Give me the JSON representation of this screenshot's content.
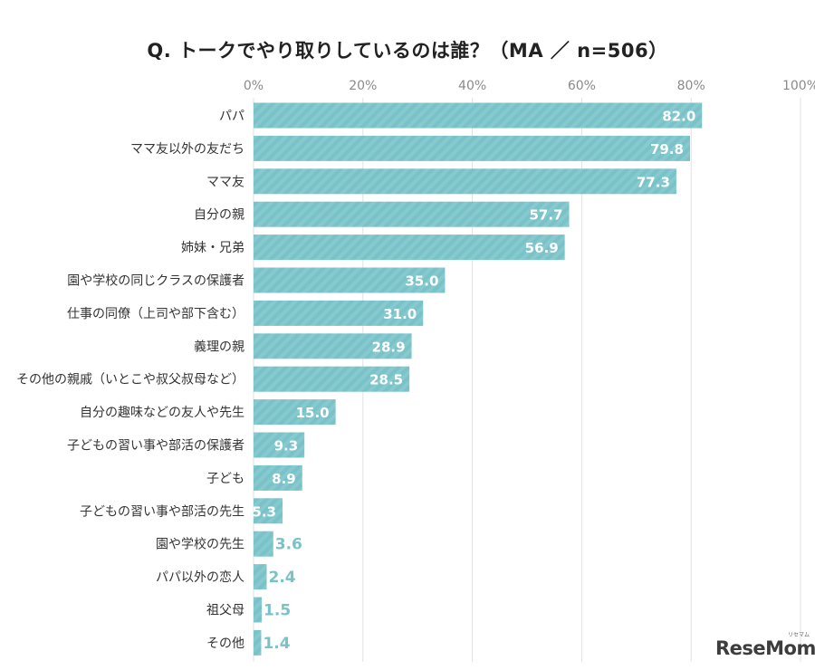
{
  "chart_data": {
    "type": "bar",
    "orientation": "horizontal",
    "title": "Q. トークでやり取りしているのは誰？（MA ／ n=506）",
    "xlabel": "",
    "ylabel": "",
    "xlim": [
      0,
      100
    ],
    "x_ticks": [
      "0%",
      "20%",
      "40%",
      "60%",
      "80%",
      "100%"
    ],
    "grid": true,
    "bar_color": "#79c2c8",
    "value_label_color": "#79c2c8",
    "categories": [
      "パパ",
      "ママ友以外の友だち",
      "ママ友",
      "自分の親",
      "姉妹・兄弟",
      "園や学校の同じクラスの保護者",
      "仕事の同僚（上司や部下含む）",
      "義理の親",
      "その他の親戚（いとこや叔父叔母など）",
      "自分の趣味などの友人や先生",
      "子どもの習い事や部活の保護者",
      "子ども",
      "子どもの習い事や部活の先生",
      "園や学校の先生",
      "パパ以外の恋人",
      "祖父母",
      "その他"
    ],
    "values": [
      82.0,
      79.8,
      77.3,
      57.7,
      56.9,
      35.0,
      31.0,
      28.9,
      28.5,
      15.0,
      9.3,
      8.9,
      5.3,
      3.6,
      2.4,
      1.5,
      1.4
    ],
    "value_labels": [
      "82.0",
      "79.8",
      "77.3",
      "57.7",
      "56.9",
      "35.0",
      "31.0",
      "28.9",
      "28.5",
      "15.0",
      "9.3",
      "8.9",
      "5.3",
      "3.6",
      "2.4",
      "1.5",
      "1.4"
    ]
  },
  "watermark": {
    "text": "ReseMom",
    "ruby": "リセマム"
  }
}
